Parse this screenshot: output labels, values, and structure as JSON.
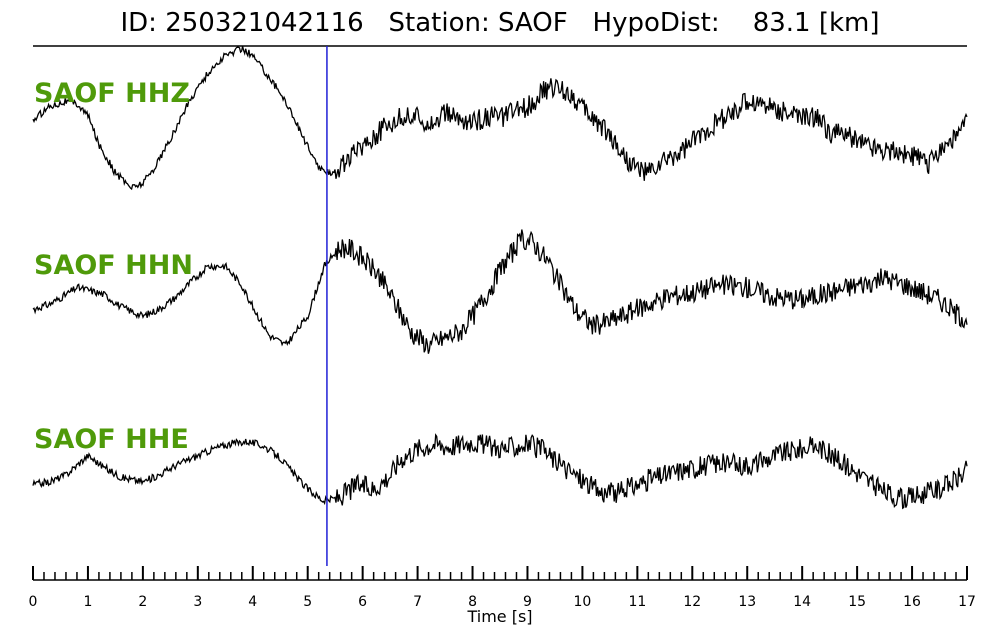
{
  "header": {
    "id_label": "ID:",
    "id_value": "250321042116",
    "station_label": "Station:",
    "station_value": "SAOF",
    "hypodist_label": "HypoDist:",
    "hypodist_value": "83.1",
    "hypodist_unit": "[km]"
  },
  "chart_data": {
    "type": "line",
    "xlabel": "Time [s]",
    "xlim": [
      0,
      17
    ],
    "xticks": [
      0,
      1,
      2,
      3,
      4,
      5,
      6,
      7,
      8,
      9,
      10,
      11,
      12,
      13,
      14,
      15,
      16,
      17
    ],
    "minor_tick_step": 0.2,
    "pick_time": 5.35,
    "colors": {
      "trace": "#000000",
      "pick": "#1f1fd6",
      "label": "#4f9a0a"
    },
    "series": [
      {
        "name": "SAOF HHZ",
        "x": [
          0,
          0.3,
          0.6,
          0.8,
          1.0,
          1.2,
          1.5,
          1.8,
          2.0,
          2.2,
          2.5,
          2.8,
          3.0,
          3.2,
          3.5,
          3.8,
          4.0,
          4.3,
          4.6,
          4.9,
          5.1,
          5.3,
          5.5,
          5.8,
          6.0,
          6.3,
          6.5,
          6.8,
          7.0,
          7.3,
          7.5,
          7.8,
          8.0,
          8.3,
          8.5,
          8.8,
          9.0,
          9.3,
          9.5,
          9.8,
          10.0,
          10.3,
          10.5,
          10.8,
          11.0,
          11.2,
          11.5,
          11.8,
          12.0,
          12.3,
          12.5,
          12.8,
          13.0,
          13.3,
          13.5,
          13.8,
          14.0,
          14.3,
          14.5,
          14.8,
          15.0,
          15.3,
          15.5,
          15.8,
          16.0,
          16.3,
          16.5,
          16.8,
          17.0
        ],
        "values": [
          0.2,
          0.5,
          0.6,
          0.55,
          0.3,
          -0.3,
          -0.9,
          -1.2,
          -1.1,
          -0.8,
          -0.2,
          0.5,
          0.9,
          1.2,
          1.55,
          1.7,
          1.55,
          1.1,
          0.6,
          -0.1,
          -0.6,
          -0.9,
          -0.85,
          -0.55,
          -0.3,
          -0.05,
          0.15,
          0.3,
          0.25,
          0.15,
          0.35,
          0.2,
          0.15,
          0.3,
          0.25,
          0.4,
          0.5,
          0.8,
          0.9,
          0.75,
          0.45,
          0.15,
          -0.1,
          -0.6,
          -0.8,
          -0.9,
          -0.65,
          -0.45,
          -0.25,
          0.05,
          0.2,
          0.4,
          0.6,
          0.55,
          0.45,
          0.35,
          0.25,
          0.25,
          -0.05,
          -0.1,
          -0.2,
          -0.35,
          -0.4,
          -0.45,
          -0.55,
          -0.7,
          -0.4,
          -0.15,
          0.15
        ]
      },
      {
        "name": "SAOF HHN",
        "x": [
          0,
          0.3,
          0.6,
          0.8,
          1.0,
          1.3,
          1.6,
          2.0,
          2.3,
          2.6,
          2.9,
          3.2,
          3.5,
          3.8,
          4.0,
          4.3,
          4.6,
          5.0,
          5.3,
          5.6,
          5.8,
          6.0,
          6.3,
          6.6,
          6.9,
          7.2,
          7.5,
          7.8,
          8.0,
          8.3,
          8.6,
          8.9,
          9.1,
          9.4,
          9.6,
          9.9,
          10.2,
          10.5,
          10.8,
          11.1,
          11.5,
          12.0,
          12.5,
          13.0,
          13.5,
          14.0,
          14.5,
          15.0,
          15.5,
          16.0,
          16.5,
          16.8,
          17.0
        ],
        "values": [
          -0.4,
          -0.3,
          -0.1,
          0.05,
          0.0,
          -0.1,
          -0.35,
          -0.55,
          -0.4,
          -0.15,
          0.2,
          0.5,
          0.5,
          0.1,
          -0.35,
          -0.95,
          -1.15,
          -0.55,
          0.5,
          0.9,
          0.85,
          0.65,
          0.3,
          -0.3,
          -0.9,
          -1.15,
          -1.0,
          -0.85,
          -0.55,
          0.0,
          0.6,
          1.05,
          1.0,
          0.55,
          0.1,
          -0.45,
          -0.75,
          -0.65,
          -0.5,
          -0.35,
          -0.15,
          -0.05,
          0.1,
          0.05,
          -0.15,
          -0.2,
          -0.05,
          0.1,
          0.25,
          0.05,
          -0.2,
          -0.5,
          -0.6
        ]
      },
      {
        "name": "SAOF HHE",
        "x": [
          0,
          0.3,
          0.6,
          0.8,
          1.0,
          1.3,
          1.6,
          2.0,
          2.3,
          2.6,
          3.0,
          3.3,
          3.6,
          3.9,
          4.2,
          4.5,
          4.8,
          5.0,
          5.3,
          5.6,
          5.9,
          6.2,
          6.5,
          6.7,
          7.0,
          7.3,
          7.6,
          8.0,
          8.3,
          8.6,
          9.0,
          9.3,
          9.6,
          10.0,
          10.3,
          10.6,
          10.9,
          11.2,
          11.5,
          11.8,
          12.1,
          12.4,
          12.8,
          13.2,
          13.6,
          14.0,
          14.3,
          14.6,
          15.0,
          15.4,
          15.8,
          16.2,
          16.6,
          16.9,
          17.0
        ],
        "values": [
          -0.3,
          -0.25,
          -0.1,
          0.1,
          0.3,
          0.05,
          -0.15,
          -0.25,
          -0.1,
          0.1,
          0.3,
          0.45,
          0.55,
          0.6,
          0.5,
          0.25,
          -0.15,
          -0.4,
          -0.65,
          -0.55,
          -0.3,
          -0.4,
          -0.1,
          0.25,
          0.45,
          0.55,
          0.5,
          0.6,
          0.5,
          0.45,
          0.55,
          0.4,
          0.1,
          -0.2,
          -0.45,
          -0.5,
          -0.35,
          -0.2,
          -0.1,
          0.0,
          0.05,
          0.15,
          0.1,
          0.15,
          0.35,
          0.45,
          0.5,
          0.25,
          -0.05,
          -0.4,
          -0.6,
          -0.5,
          -0.35,
          -0.1,
          0.0
        ]
      }
    ]
  }
}
